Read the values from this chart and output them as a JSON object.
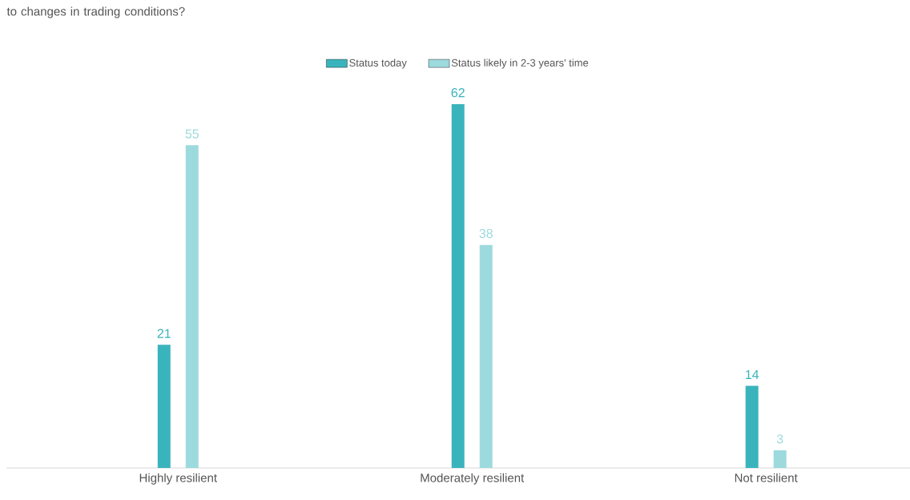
{
  "chart_data": {
    "type": "bar",
    "title": "to changes in trading conditions?",
    "categories": [
      "Highly resilient",
      "Moderately resilient",
      "Not resilient"
    ],
    "series": [
      {
        "name": "Status today",
        "color": "#3ab4bc",
        "values": [
          21,
          62,
          14
        ]
      },
      {
        "name": "Status likely in 2-3 years' time",
        "color": "#9ddadd",
        "values": [
          55,
          38,
          3
        ]
      }
    ],
    "data_labels": true,
    "legend": "top"
  }
}
